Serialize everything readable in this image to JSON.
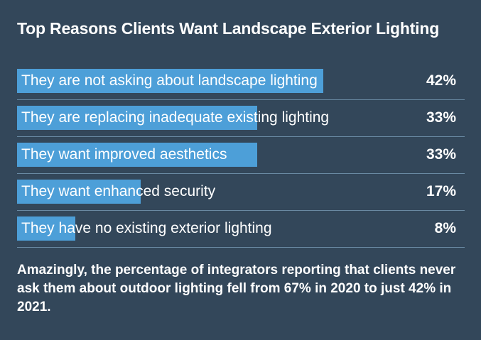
{
  "colors": {
    "background": "#33475a",
    "bar": "#4d9fd8",
    "divider": "#6a8aa3",
    "text": "#ffffff"
  },
  "note": "Amazingly, the percentage of integrators reporting that clients never ask them about outdoor lighting fell from 67% in 2020 to just 42% in 2021.",
  "chart_data": {
    "type": "bar",
    "orientation": "horizontal",
    "title": "Top Reasons Clients Want Landscape Exterior Lighting",
    "categories": [
      "They are not asking about landscape lighting",
      "They are replacing inadequate existing lighting",
      "They want improved aesthetics",
      "They want enhanced security",
      "They have no existing exterior lighting"
    ],
    "values": [
      42,
      33,
      33,
      17,
      8
    ],
    "value_labels": [
      "42%",
      "33%",
      "33%",
      "17%",
      "8%"
    ],
    "unit": "%",
    "xlim": [
      0,
      100
    ],
    "grid": false,
    "legend": "none"
  }
}
